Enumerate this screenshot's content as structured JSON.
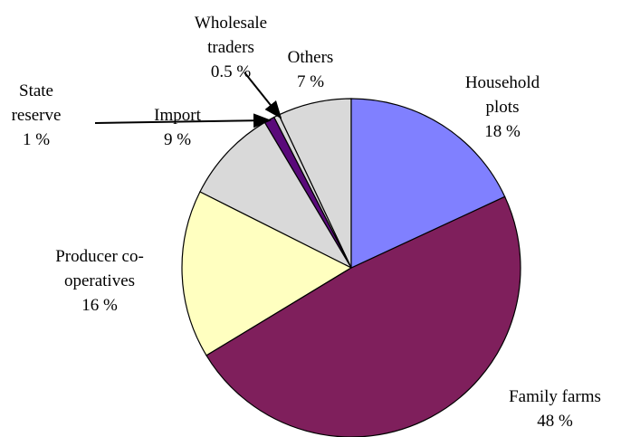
{
  "chart_data": {
    "type": "pie",
    "categories": [
      "Household plots",
      "Family farms",
      "Producer co-operatives",
      "Import",
      "State reserve",
      "Wholesale traders",
      "Others"
    ],
    "values": [
      18,
      48,
      16,
      9,
      1,
      0.5,
      7
    ],
    "value_labels": [
      "18 %",
      "48 %",
      "16 %",
      "9 %",
      "1 %",
      "0.5 %",
      "7 %"
    ],
    "colors": [
      "#8080ff",
      "#7f1f5c",
      "#ffffc0",
      "#d9d9d9",
      "#5a0a7a",
      "#d9d9d9",
      "#d9d9d9"
    ]
  }
}
